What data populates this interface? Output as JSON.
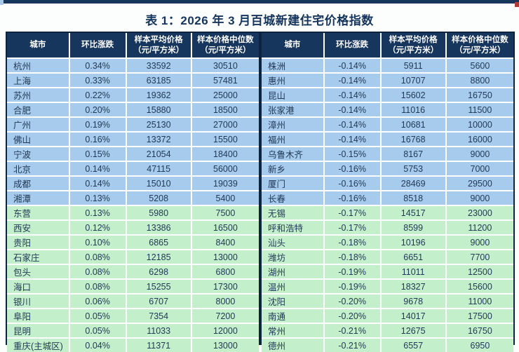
{
  "page": {
    "title": "表 1：2026 年 3 月百城新建住宅价格指数"
  },
  "colors": {
    "header_bg": "#17365d",
    "row_blue": "#a7cbec",
    "row_green": "#c3efca",
    "body_text": "#223a58",
    "outer_border": "#0d2440",
    "top_bar": "#16365c",
    "corner_left_accent": "#a9c7e6",
    "corner_right_accent": "#b23a34"
  },
  "columns": {
    "city": "城市",
    "change": "环比涨跌",
    "avg_line1": "样本平均价格",
    "avg_line2": "（元/平方米）",
    "median_line1": "样本价格中位数",
    "median_line2": "（元/平方米）"
  },
  "left_table": {
    "rows": [
      {
        "city": "杭州",
        "change": "0.34%",
        "avg": "33592",
        "median": "30510",
        "tone": "blue"
      },
      {
        "city": "上海",
        "change": "0.33%",
        "avg": "63185",
        "median": "57481",
        "tone": "blue"
      },
      {
        "city": "苏州",
        "change": "0.22%",
        "avg": "19362",
        "median": "25000",
        "tone": "blue"
      },
      {
        "city": "合肥",
        "change": "0.20%",
        "avg": "15880",
        "median": "18500",
        "tone": "blue"
      },
      {
        "city": "广州",
        "change": "0.19%",
        "avg": "25130",
        "median": "27000",
        "tone": "blue"
      },
      {
        "city": "佛山",
        "change": "0.16%",
        "avg": "13372",
        "median": "15500",
        "tone": "blue"
      },
      {
        "city": "宁波",
        "change": "0.15%",
        "avg": "21054",
        "median": "18400",
        "tone": "blue"
      },
      {
        "city": "北京",
        "change": "0.14%",
        "avg": "47115",
        "median": "56000",
        "tone": "blue"
      },
      {
        "city": "成都",
        "change": "0.14%",
        "avg": "15010",
        "median": "19039",
        "tone": "blue"
      },
      {
        "city": "湘潭",
        "change": "0.13%",
        "avg": "5208",
        "median": "5400",
        "tone": "blue"
      },
      {
        "city": "东营",
        "change": "0.13%",
        "avg": "5980",
        "median": "7500",
        "tone": "green"
      },
      {
        "city": "西安",
        "change": "0.12%",
        "avg": "13386",
        "median": "16500",
        "tone": "green"
      },
      {
        "city": "贵阳",
        "change": "0.10%",
        "avg": "6865",
        "median": "8400",
        "tone": "green"
      },
      {
        "city": "石家庄",
        "change": "0.08%",
        "avg": "12185",
        "median": "13000",
        "tone": "green"
      },
      {
        "city": "包头",
        "change": "0.08%",
        "avg": "6298",
        "median": "6800",
        "tone": "green"
      },
      {
        "city": "海口",
        "change": "0.08%",
        "avg": "15255",
        "median": "17300",
        "tone": "green"
      },
      {
        "city": "银川",
        "change": "0.06%",
        "avg": "6707",
        "median": "8000",
        "tone": "green"
      },
      {
        "city": "阜阳",
        "change": "0.05%",
        "avg": "7354",
        "median": "7200",
        "tone": "green"
      },
      {
        "city": "昆明",
        "change": "0.05%",
        "avg": "11033",
        "median": "12000",
        "tone": "green"
      },
      {
        "city": "重庆(主城区)",
        "change": "0.04%",
        "avg": "11371",
        "median": "13000",
        "tone": "green"
      }
    ]
  },
  "right_table": {
    "rows": [
      {
        "city": "株洲",
        "change": "-0.14%",
        "avg": "5911",
        "median": "5600",
        "tone": "blue"
      },
      {
        "city": "惠州",
        "change": "-0.14%",
        "avg": "10707",
        "median": "8800",
        "tone": "blue"
      },
      {
        "city": "昆山",
        "change": "-0.14%",
        "avg": "15602",
        "median": "16750",
        "tone": "blue"
      },
      {
        "city": "张家港",
        "change": "-0.14%",
        "avg": "11016",
        "median": "11500",
        "tone": "blue"
      },
      {
        "city": "漳州",
        "change": "-0.14%",
        "avg": "10681",
        "median": "10000",
        "tone": "blue"
      },
      {
        "city": "福州",
        "change": "-0.14%",
        "avg": "16768",
        "median": "16000",
        "tone": "blue"
      },
      {
        "city": "乌鲁木齐",
        "change": "-0.15%",
        "avg": "8167",
        "median": "9000",
        "tone": "blue"
      },
      {
        "city": "新乡",
        "change": "-0.16%",
        "avg": "5753",
        "median": "7000",
        "tone": "blue"
      },
      {
        "city": "厦门",
        "change": "-0.16%",
        "avg": "28469",
        "median": "29500",
        "tone": "blue"
      },
      {
        "city": "长春",
        "change": "-0.16%",
        "avg": "8518",
        "median": "9000",
        "tone": "blue"
      },
      {
        "city": "无锡",
        "change": "-0.17%",
        "avg": "14517",
        "median": "23000",
        "tone": "green"
      },
      {
        "city": "呼和浩特",
        "change": "-0.17%",
        "avg": "8599",
        "median": "11200",
        "tone": "green"
      },
      {
        "city": "汕头",
        "change": "-0.18%",
        "avg": "10196",
        "median": "9000",
        "tone": "green"
      },
      {
        "city": "潍坊",
        "change": "-0.18%",
        "avg": "6651",
        "median": "7700",
        "tone": "green"
      },
      {
        "city": "湖州",
        "change": "-0.19%",
        "avg": "11011",
        "median": "12500",
        "tone": "green"
      },
      {
        "city": "温州",
        "change": "-0.19%",
        "avg": "18327",
        "median": "15600",
        "tone": "green"
      },
      {
        "city": "沈阳",
        "change": "-0.20%",
        "avg": "9678",
        "median": "11000",
        "tone": "green"
      },
      {
        "city": "南通",
        "change": "-0.20%",
        "avg": "14017",
        "median": "17500",
        "tone": "green"
      },
      {
        "city": "常州",
        "change": "-0.21%",
        "avg": "12675",
        "median": "16750",
        "tone": "green"
      },
      {
        "city": "德州",
        "change": "-0.21%",
        "avg": "6557",
        "median": "6950",
        "tone": "green"
      }
    ]
  }
}
